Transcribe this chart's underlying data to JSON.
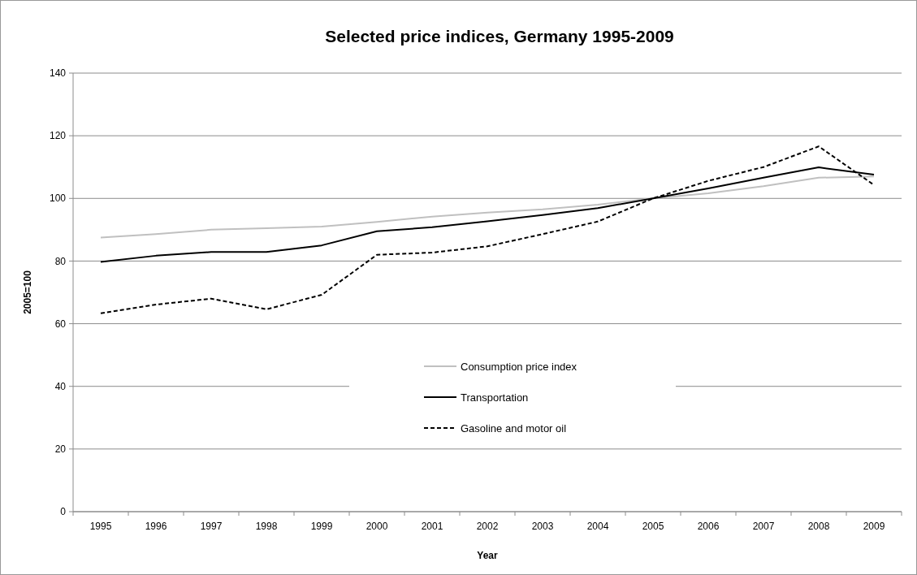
{
  "chart_data": {
    "type": "line",
    "title": "Selected price indices, Germany 1995-2009",
    "xlabel": "Year",
    "ylabel": "2005=100",
    "categories": [
      "1995",
      "1996",
      "1997",
      "1998",
      "1999",
      "2000",
      "2001",
      "2002",
      "2003",
      "2004",
      "2005",
      "2006",
      "2007",
      "2008",
      "2009"
    ],
    "series": [
      {
        "name": "Consumption price index",
        "color": "#c0c0c0",
        "line_style": "solid",
        "values": [
          87.5,
          88.6,
          90.0,
          90.5,
          91.0,
          92.5,
          94.2,
          95.5,
          96.5,
          98.0,
          100,
          101.6,
          103.9,
          106.6,
          107.0
        ]
      },
      {
        "name": "Transportation",
        "color": "#000000",
        "line_style": "solid",
        "values": [
          79.7,
          81.7,
          82.9,
          82.9,
          85.0,
          89.5,
          90.8,
          92.7,
          94.7,
          96.9,
          100,
          103.2,
          106.6,
          109.9,
          107.6
        ]
      },
      {
        "name": "Gasoline and motor oil",
        "color": "#000000",
        "line_style": "dashed",
        "values": [
          63.3,
          66.1,
          68.0,
          64.6,
          69.2,
          82.0,
          82.7,
          84.7,
          88.6,
          92.6,
          100,
          105.6,
          110.0,
          116.6,
          104.3
        ]
      }
    ],
    "ylim": [
      0,
      140
    ],
    "yticks": [
      0,
      20,
      40,
      60,
      80,
      100,
      120,
      140
    ],
    "grid": "y",
    "legend": "center",
    "marker": "none"
  }
}
